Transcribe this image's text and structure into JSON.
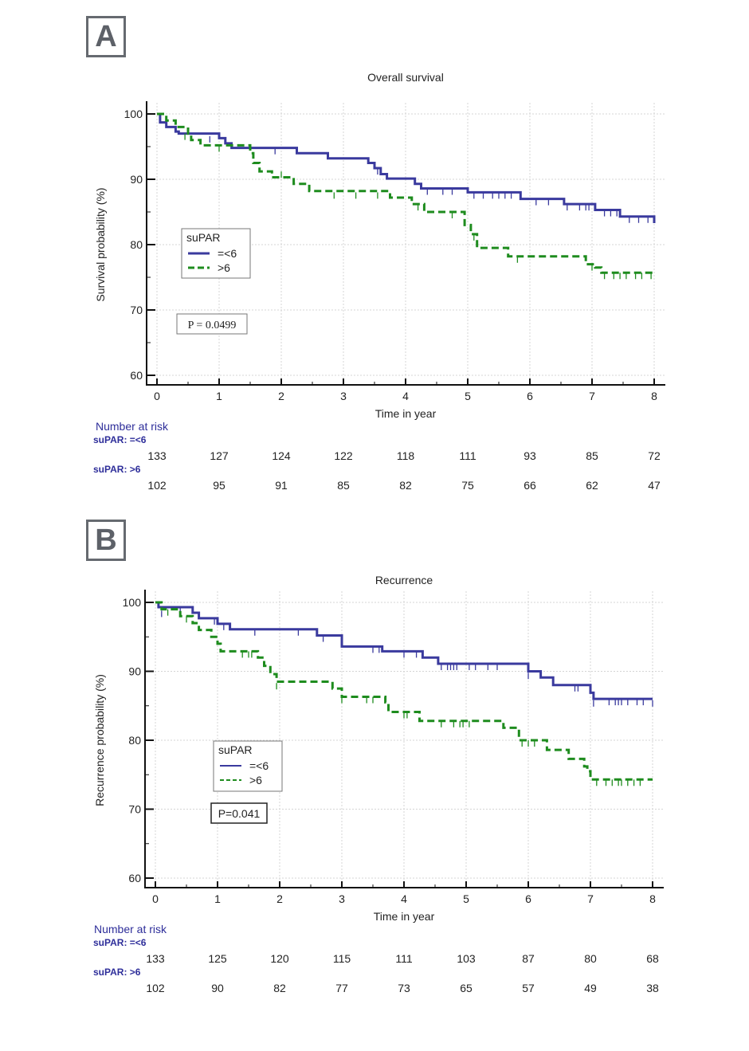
{
  "figure": {
    "panels": [
      {
        "label": "A"
      },
      {
        "label": "B"
      }
    ]
  },
  "chart_data": [
    {
      "type": "line",
      "subtype": "kaplan-meier",
      "panel": "A",
      "title": "Overall survival",
      "xlabel": "Time in year",
      "ylabel": "Survival probability (%)",
      "xlim": [
        0,
        8
      ],
      "ylim": [
        60,
        100
      ],
      "xticks": [
        0,
        1,
        2,
        3,
        4,
        5,
        6,
        7,
        8
      ],
      "yticks": [
        60,
        70,
        80,
        90,
        100
      ],
      "grid": true,
      "legend": {
        "title": "suPAR",
        "placement": "middle-left",
        "entries": [
          "=<6",
          ">6"
        ]
      },
      "annotation": "P = 0.0499",
      "series": [
        {
          "name": "=<6",
          "color": "#3a3a9e",
          "style": "solid",
          "steps": [
            [
              0,
              100
            ],
            [
              0.05,
              98.7
            ],
            [
              0.15,
              98
            ],
            [
              0.3,
              97.3
            ],
            [
              0.35,
              97
            ],
            [
              1.0,
              96.3
            ],
            [
              1.1,
              95.5
            ],
            [
              1.2,
              94.8
            ],
            [
              2.25,
              94
            ],
            [
              2.75,
              93.2
            ],
            [
              3.4,
              92.5
            ],
            [
              3.5,
              91.7
            ],
            [
              3.6,
              90.8
            ],
            [
              3.7,
              90.1
            ],
            [
              4.15,
              89.3
            ],
            [
              4.25,
              88.6
            ],
            [
              5.0,
              88
            ],
            [
              5.85,
              87
            ],
            [
              6.55,
              86.2
            ],
            [
              7.05,
              85.3
            ],
            [
              7.45,
              84.3
            ],
            [
              8.0,
              83.3
            ]
          ],
          "censored": [
            [
              0.85,
              96.6
            ],
            [
              1.9,
              94.8
            ],
            [
              3.55,
              91.7
            ],
            [
              4.35,
              88.6
            ],
            [
              4.6,
              88.6
            ],
            [
              4.75,
              88.6
            ],
            [
              5.1,
              88
            ],
            [
              5.25,
              88
            ],
            [
              5.4,
              88
            ],
            [
              5.5,
              88
            ],
            [
              5.6,
              88
            ],
            [
              5.7,
              88
            ],
            [
              6.1,
              87
            ],
            [
              6.3,
              87
            ],
            [
              6.6,
              86.2
            ],
            [
              6.8,
              86.2
            ],
            [
              6.9,
              86.2
            ],
            [
              6.95,
              86.2
            ],
            [
              7.2,
              85.3
            ],
            [
              7.3,
              85.3
            ],
            [
              7.4,
              85.3
            ],
            [
              7.6,
              84.3
            ],
            [
              7.75,
              84.3
            ],
            [
              7.9,
              84.3
            ]
          ]
        },
        {
          "name": ">6",
          "color": "#1e8c1e",
          "style": "dashed",
          "steps": [
            [
              0,
              100
            ],
            [
              0.15,
              99
            ],
            [
              0.3,
              98
            ],
            [
              0.5,
              97
            ],
            [
              0.55,
              96
            ],
            [
              0.7,
              95.2
            ],
            [
              1.5,
              94
            ],
            [
              1.55,
              92.5
            ],
            [
              1.65,
              91.2
            ],
            [
              1.85,
              90.3
            ],
            [
              2.2,
              89.3
            ],
            [
              2.45,
              88.2
            ],
            [
              2.85,
              88.2
            ],
            [
              3.75,
              87.2
            ],
            [
              4.1,
              86.2
            ],
            [
              4.3,
              85
            ],
            [
              4.95,
              83
            ],
            [
              5.05,
              81.6
            ],
            [
              5.15,
              79.5
            ],
            [
              5.65,
              78.2
            ],
            [
              6.9,
              77
            ],
            [
              7.05,
              76.5
            ],
            [
              7.15,
              75.7
            ],
            [
              8.0,
              75.7
            ]
          ],
          "censored": [
            [
              0.45,
              97
            ],
            [
              1.0,
              95.2
            ],
            [
              2.0,
              91.2
            ],
            [
              2.85,
              88
            ],
            [
              3.2,
              88
            ],
            [
              3.55,
              88
            ],
            [
              4.2,
              86.2
            ],
            [
              4.75,
              85
            ],
            [
              5.1,
              81.6
            ],
            [
              5.8,
              78.2
            ],
            [
              7.0,
              77
            ],
            [
              7.2,
              75.7
            ],
            [
              7.35,
              75.7
            ],
            [
              7.45,
              75.7
            ],
            [
              7.55,
              75.7
            ],
            [
              7.7,
              75.7
            ],
            [
              7.8,
              75.7
            ],
            [
              7.95,
              75.7
            ]
          ]
        }
      ],
      "number_at_risk": {
        "title": "Number at risk",
        "groups": [
          {
            "label": "suPAR: =<6",
            "values": [
              133,
              127,
              124,
              122,
              118,
              111,
              93,
              85,
              72
            ]
          },
          {
            "label": "suPAR: >6",
            "values": [
              102,
              95,
              91,
              85,
              82,
              75,
              66,
              62,
              47
            ]
          }
        ]
      }
    },
    {
      "type": "line",
      "subtype": "kaplan-meier",
      "panel": "B",
      "title": "Recurrence",
      "xlabel": "Time in year",
      "ylabel": "Recurrence probability (%)",
      "xlim": [
        0,
        8
      ],
      "ylim": [
        60,
        100
      ],
      "xticks": [
        0,
        1,
        2,
        3,
        4,
        5,
        6,
        7,
        8
      ],
      "yticks": [
        60,
        70,
        80,
        90,
        100
      ],
      "grid": true,
      "legend": {
        "title": "suPAR",
        "placement": "middle-left",
        "entries": [
          "=<6",
          ">6"
        ]
      },
      "annotation": "P=0.041",
      "series": [
        {
          "name": "=<6",
          "color": "#3a3a9e",
          "style": "solid",
          "steps": [
            [
              0,
              100
            ],
            [
              0.05,
              99.3
            ],
            [
              0.6,
              98.5
            ],
            [
              0.7,
              97.7
            ],
            [
              1.0,
              96.9
            ],
            [
              1.2,
              96.1
            ],
            [
              2.6,
              95.2
            ],
            [
              3.0,
              93.6
            ],
            [
              3.65,
              92.9
            ],
            [
              4.3,
              92
            ],
            [
              4.55,
              91.1
            ],
            [
              6.0,
              90
            ],
            [
              6.2,
              89.1
            ],
            [
              6.4,
              88
            ],
            [
              7.0,
              86.9
            ],
            [
              7.05,
              86
            ],
            [
              8.0,
              86
            ]
          ],
          "censored": [
            [
              0.1,
              98.8
            ],
            [
              0.4,
              99.3
            ],
            [
              0.95,
              97.7
            ],
            [
              1.1,
              96.9
            ],
            [
              1.2,
              96.9
            ],
            [
              1.6,
              96.1
            ],
            [
              2.3,
              96.1
            ],
            [
              2.7,
              95.2
            ],
            [
              3.5,
              93.6
            ],
            [
              3.6,
              93.6
            ],
            [
              4.0,
              92.9
            ],
            [
              4.2,
              92.9
            ],
            [
              4.6,
              91.1
            ],
            [
              4.7,
              91.1
            ],
            [
              4.75,
              91.1
            ],
            [
              4.8,
              91.1
            ],
            [
              4.85,
              91.1
            ],
            [
              5.05,
              91.1
            ],
            [
              5.15,
              91.1
            ],
            [
              5.35,
              91.1
            ],
            [
              5.5,
              91.1
            ],
            [
              6.0,
              89.8
            ],
            [
              6.75,
              88
            ],
            [
              6.8,
              88
            ],
            [
              7.05,
              85.8
            ],
            [
              7.3,
              86
            ],
            [
              7.4,
              86
            ],
            [
              7.45,
              86
            ],
            [
              7.5,
              86
            ],
            [
              7.6,
              86
            ],
            [
              7.75,
              86
            ],
            [
              7.85,
              86
            ],
            [
              8.0,
              85.8
            ]
          ]
        },
        {
          "name": ">6",
          "color": "#1e8c1e",
          "style": "dashed",
          "steps": [
            [
              0,
              100
            ],
            [
              0.1,
              99
            ],
            [
              0.4,
              98
            ],
            [
              0.6,
              97
            ],
            [
              0.7,
              96
            ],
            [
              0.9,
              95
            ],
            [
              1.0,
              94
            ],
            [
              1.05,
              92.9
            ],
            [
              1.65,
              92
            ],
            [
              1.75,
              90.8
            ],
            [
              1.85,
              89.6
            ],
            [
              1.95,
              88.5
            ],
            [
              2.85,
              87.5
            ],
            [
              3.0,
              86.3
            ],
            [
              3.7,
              85.5
            ],
            [
              3.75,
              84.1
            ],
            [
              4.25,
              82.8
            ],
            [
              5.6,
              81.8
            ],
            [
              5.85,
              80
            ],
            [
              6.3,
              78.6
            ],
            [
              6.65,
              77.3
            ],
            [
              6.9,
              76.2
            ],
            [
              6.95,
              75.5
            ],
            [
              7.0,
              74.3
            ],
            [
              8.0,
              74.3
            ]
          ],
          "censored": [
            [
              0.2,
              99
            ],
            [
              0.5,
              98
            ],
            [
              1.4,
              92.9
            ],
            [
              1.5,
              92.9
            ],
            [
              1.55,
              92.9
            ],
            [
              1.95,
              88.3
            ],
            [
              3.0,
              86.3
            ],
            [
              3.4,
              86.3
            ],
            [
              3.5,
              86.3
            ],
            [
              4.0,
              84.1
            ],
            [
              4.05,
              84.1
            ],
            [
              4.6,
              82.8
            ],
            [
              4.8,
              82.8
            ],
            [
              4.9,
              82.8
            ],
            [
              4.95,
              82.8
            ],
            [
              5.05,
              82.8
            ],
            [
              5.9,
              80
            ],
            [
              6.0,
              80
            ],
            [
              6.1,
              80
            ],
            [
              7.1,
              74.3
            ],
            [
              7.25,
              74.3
            ],
            [
              7.35,
              74.3
            ],
            [
              7.45,
              74.3
            ],
            [
              7.5,
              74.3
            ],
            [
              7.6,
              74.3
            ],
            [
              7.7,
              74.3
            ],
            [
              7.8,
              74.3
            ]
          ]
        }
      ],
      "number_at_risk": {
        "title": "Number at risk",
        "groups": [
          {
            "label": "suPAR: =<6",
            "values": [
              133,
              125,
              120,
              115,
              111,
              103,
              87,
              80,
              68
            ]
          },
          {
            "label": "suPAR: >6",
            "values": [
              102,
              90,
              82,
              77,
              73,
              65,
              57,
              49,
              38
            ]
          }
        ]
      }
    }
  ]
}
